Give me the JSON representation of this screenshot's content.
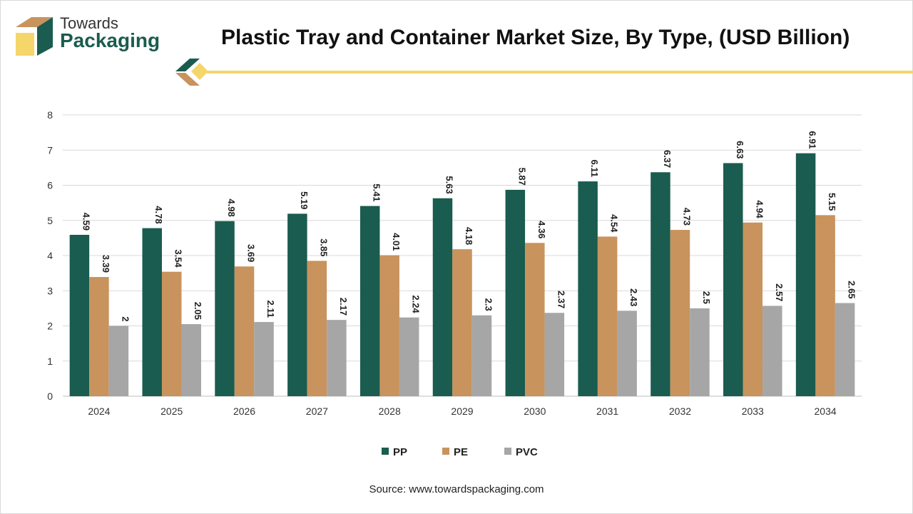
{
  "header": {
    "logo_line1": "Towards",
    "logo_line2": "Packaging",
    "title": "Plastic Tray and Container Market Size, By Type, (USD Billion)"
  },
  "source": "Source: www.towardspackaging.com",
  "colors": {
    "PP": "#1a5c4f",
    "PE": "#c8935d",
    "PVC": "#a6a6a6",
    "accent_line": "#f5d66b",
    "brand_green": "#1a5c4f",
    "brand_tan": "#c8935d"
  },
  "chart_data": {
    "type": "bar",
    "title": "Plastic Tray and Container Market Size, By Type, (USD Billion)",
    "xlabel": "",
    "ylabel": "",
    "ylim": [
      0,
      8
    ],
    "yticks": [
      0,
      1,
      2,
      3,
      4,
      5,
      6,
      7,
      8
    ],
    "grid": true,
    "legend_position": "bottom-center",
    "categories": [
      "2024",
      "2025",
      "2026",
      "2027",
      "2028",
      "2029",
      "2030",
      "2031",
      "2032",
      "2033",
      "2034"
    ],
    "series": [
      {
        "name": "PP",
        "values": [
          4.59,
          4.78,
          4.98,
          5.19,
          5.41,
          5.63,
          5.87,
          6.11,
          6.37,
          6.63,
          6.91
        ]
      },
      {
        "name": "PE",
        "values": [
          3.39,
          3.54,
          3.69,
          3.85,
          4.01,
          4.18,
          4.36,
          4.54,
          4.73,
          4.94,
          5.15
        ]
      },
      {
        "name": "PVC",
        "values": [
          2,
          2.05,
          2.11,
          2.17,
          2.24,
          2.3,
          2.37,
          2.43,
          2.5,
          2.57,
          2.65
        ]
      }
    ]
  }
}
